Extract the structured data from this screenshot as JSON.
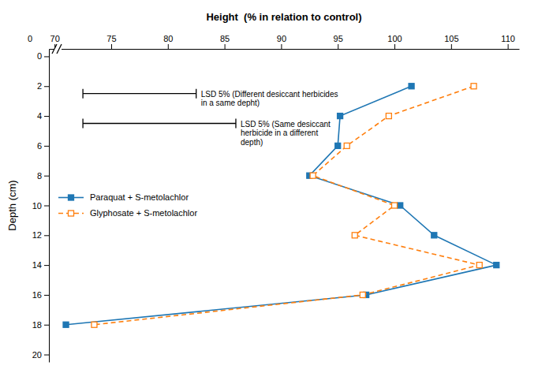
{
  "chart_data": {
    "type": "line",
    "xlabel": "Height  (% in relation to control)",
    "ylabel": "Depth (cm)",
    "xlim": [
      69.5,
      111
    ],
    "ylim": [
      20.5,
      -0.5
    ],
    "xticks": [
      70,
      75,
      80,
      85,
      90,
      95,
      100,
      105,
      110
    ],
    "yticks": [
      0,
      2,
      4,
      6,
      8,
      10,
      12,
      14,
      16,
      18,
      20
    ],
    "x_break_tick": 0,
    "series": [
      {
        "name": "Paraquat + S-metolachlor",
        "x": [
          101.5,
          95.2,
          95.0,
          92.5,
          100.5,
          103.5,
          109.0,
          97.5,
          71.0
        ],
        "values": [
          2,
          4,
          6,
          8,
          10,
          12,
          14,
          16,
          18
        ],
        "marker": "square",
        "line_style": "solid"
      },
      {
        "name": "Glyphosate + S-metolachlor",
        "x": [
          107.0,
          99.5,
          95.8,
          92.8,
          100.0,
          96.5,
          107.5,
          97.2,
          73.5
        ],
        "values": [
          2,
          4,
          6,
          8,
          10,
          12,
          14,
          16,
          18
        ],
        "marker": "square-open",
        "line_style": "dashed"
      }
    ],
    "lsd": [
      {
        "label": "LSD 5% (Different desiccant herbicides\nin a same depht)",
        "x_start": 72.5,
        "x_end": 82.5,
        "y": 2.5
      },
      {
        "label": "LSD 5% (Same desiccant\nherbicide in a different\ndepth)",
        "x_start": 72.5,
        "x_end": 86.0,
        "y": 4.5
      }
    ],
    "legend": "left",
    "grid": false
  }
}
